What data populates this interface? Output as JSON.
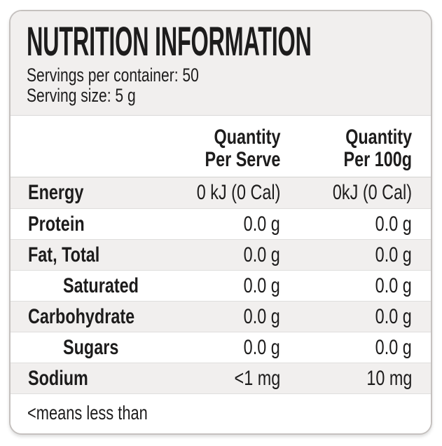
{
  "panel": {
    "title": "NUTRITION INFORMATION",
    "servings_per_container": "Servings per container: 50",
    "serving_size": "Serving size: 5 g",
    "footnote": "<means less than"
  },
  "table": {
    "columns": [
      {
        "line1": "Quantity",
        "line2": "Per Serve"
      },
      {
        "line1": "Quantity",
        "line2": "Per 100g"
      }
    ],
    "rows": [
      {
        "label": "Energy",
        "per_serve": "0 kJ (0 Cal)",
        "per_100g": "0kJ (0 Cal)",
        "indent": false,
        "shaded": true
      },
      {
        "label": "Protein",
        "per_serve": "0.0 g",
        "per_100g": "0.0 g",
        "indent": false,
        "shaded": false
      },
      {
        "label": "Fat, Total",
        "per_serve": "0.0 g",
        "per_100g": "0.0 g",
        "indent": false,
        "shaded": true
      },
      {
        "label": "Saturated",
        "per_serve": "0.0 g",
        "per_100g": "0.0 g",
        "indent": true,
        "shaded": false
      },
      {
        "label": "Carbohydrate",
        "per_serve": "0.0 g",
        "per_100g": "0.0 g",
        "indent": false,
        "shaded": true
      },
      {
        "label": "Sugars",
        "per_serve": "0.0 g",
        "per_100g": "0.0 g",
        "indent": true,
        "shaded": false
      },
      {
        "label": "Sodium",
        "per_serve": "<1 mg",
        "per_100g": "10 mg",
        "indent": false,
        "shaded": true
      }
    ]
  },
  "colors": {
    "page_background": "#ffffff",
    "panel_background": "#f1efee",
    "shaded_row": "#f1efee",
    "row_divider": "#dfdedd",
    "section_divider": "#d9d8d7",
    "card_border": "#c5c1bf",
    "text": "#1d1c1c"
  }
}
